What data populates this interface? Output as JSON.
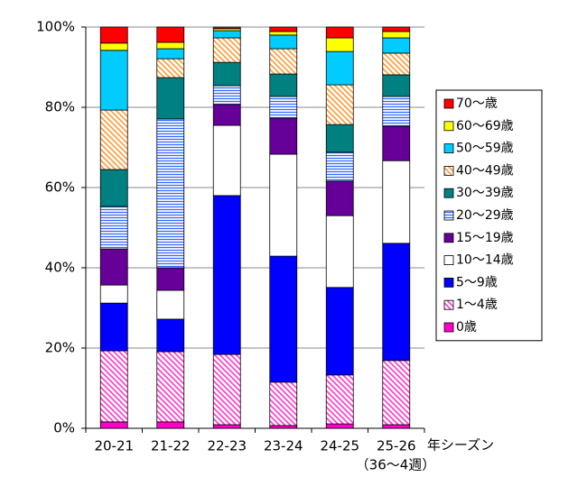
{
  "chart_data": {
    "type": "stacked_bar",
    "categories": [
      "20-21",
      "21-22",
      "22-23",
      "23-24",
      "24-25",
      "25-26"
    ],
    "x_label": "年シーズン",
    "x_note": "（36～4週）",
    "ylim": [
      0,
      100
    ],
    "yticks": [
      {
        "value": 0,
        "label": "0%"
      },
      {
        "value": 20,
        "label": "20%"
      },
      {
        "value": 40,
        "label": "40%"
      },
      {
        "value": 60,
        "label": "60%"
      },
      {
        "value": 80,
        "label": "80%"
      },
      {
        "value": 100,
        "label": "100%"
      }
    ],
    "grid": true,
    "legend": "right",
    "series": [
      {
        "name": "0歳",
        "color": "#ff00cc",
        "values": [
          1.6,
          1.6,
          0.9,
          0.7,
          1.1,
          0.9
        ]
      },
      {
        "name": "1～4歳",
        "color": "#ff33cc",
        "pattern": "diagonal",
        "values": [
          17.7,
          17.5,
          17.5,
          10.8,
          12.2,
          16.0
        ]
      },
      {
        "name": "5～9歳",
        "color": "#0000ff",
        "values": [
          11.9,
          8.1,
          39.6,
          31.4,
          21.8,
          29.2
        ]
      },
      {
        "name": "10～14歳",
        "color": "#ffffff",
        "values": [
          4.5,
          7.2,
          17.5,
          25.4,
          17.9,
          20.6
        ]
      },
      {
        "name": "15～19歳",
        "color": "#660099",
        "values": [
          9.0,
          5.6,
          5.2,
          9.0,
          8.6,
          8.6
        ]
      },
      {
        "name": "20～29歳",
        "color": "#3366ff",
        "pattern": "horizontal",
        "values": [
          10.6,
          37.1,
          4.7,
          5.4,
          7.2,
          7.4
        ]
      },
      {
        "name": "30～39歳",
        "color": "#008080",
        "values": [
          9.2,
          10.3,
          5.8,
          5.6,
          6.9,
          5.4
        ]
      },
      {
        "name": "40～49歳",
        "color": "#ff9933",
        "pattern": "diagonal",
        "values": [
          14.8,
          4.7,
          6.1,
          6.3,
          9.9,
          5.4
        ]
      },
      {
        "name": "50～59歳",
        "color": "#00ccff",
        "values": [
          14.9,
          2.5,
          1.8,
          3.4,
          8.3,
          3.8
        ]
      },
      {
        "name": "60～69歳",
        "color": "#ffff00",
        "values": [
          1.8,
          1.6,
          0.5,
          0.9,
          3.4,
          1.6
        ]
      },
      {
        "name": "70～歳",
        "color": "#ff0000",
        "values": [
          4.0,
          3.8,
          0.4,
          1.1,
          2.7,
          1.1
        ]
      }
    ]
  }
}
